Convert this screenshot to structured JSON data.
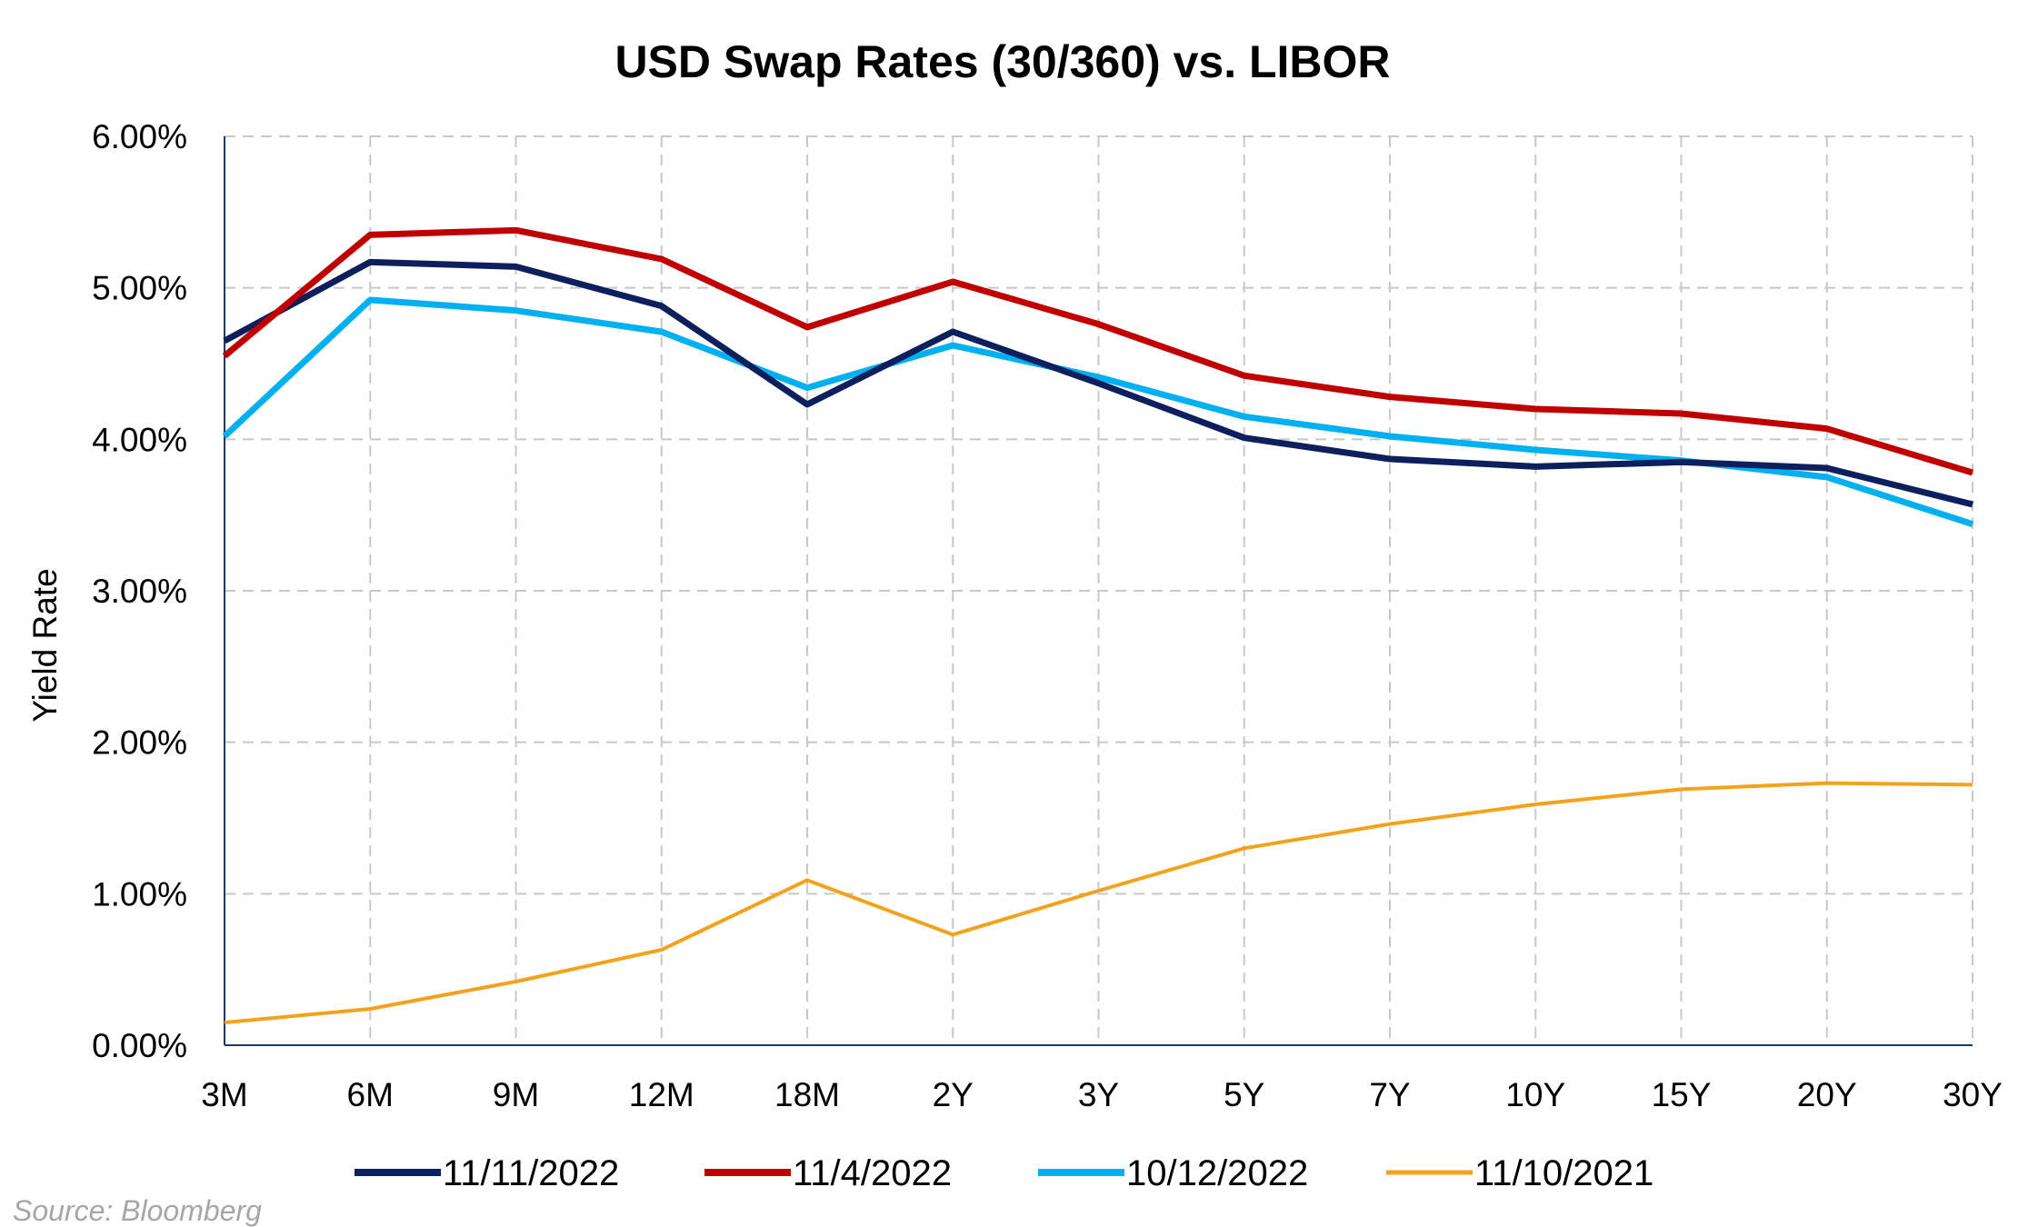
{
  "chart_data": {
    "type": "line",
    "title": "USD Swap Rates (30/360) vs. LIBOR",
    "ylabel": "Yield Rate",
    "xlabel": "",
    "categories": [
      "3M",
      "6M",
      "9M",
      "12M",
      "18M",
      "2Y",
      "3Y",
      "5Y",
      "7Y",
      "10Y",
      "15Y",
      "20Y",
      "30Y"
    ],
    "ylim": [
      0,
      6
    ],
    "yticks": [
      {
        "value": 0,
        "label": "0.00%"
      },
      {
        "value": 1,
        "label": "1.00%"
      },
      {
        "value": 2,
        "label": "2.00%"
      },
      {
        "value": 3,
        "label": "3.00%"
      },
      {
        "value": 4,
        "label": "4.00%"
      },
      {
        "value": 5,
        "label": "5.00%"
      },
      {
        "value": 6,
        "label": "6.00%"
      }
    ],
    "grid": true,
    "legend_position": "bottom",
    "series": [
      {
        "name": "11/11/2022",
        "color": "#0d1f5c",
        "values": [
          4.65,
          5.17,
          5.14,
          4.88,
          4.23,
          4.71,
          4.37,
          4.01,
          3.87,
          3.82,
          3.85,
          3.81,
          3.57
        ]
      },
      {
        "name": "11/4/2022",
        "color": "#c00000",
        "values": [
          4.55,
          5.35,
          5.38,
          5.19,
          4.74,
          5.04,
          4.76,
          4.42,
          4.28,
          4.2,
          4.17,
          4.07,
          3.78
        ]
      },
      {
        "name": "10/12/2022",
        "color": "#00b0f0",
        "values": [
          4.02,
          4.92,
          4.85,
          4.71,
          4.34,
          4.62,
          4.41,
          4.15,
          4.02,
          3.93,
          3.86,
          3.75,
          3.44
        ]
      },
      {
        "name": "11/10/2021",
        "color": "#f4a21b",
        "values": [
          0.15,
          0.24,
          0.42,
          0.63,
          1.09,
          0.73,
          1.02,
          1.3,
          1.46,
          1.59,
          1.69,
          1.73,
          1.72
        ]
      }
    ],
    "source": "Source: Bloomberg"
  }
}
